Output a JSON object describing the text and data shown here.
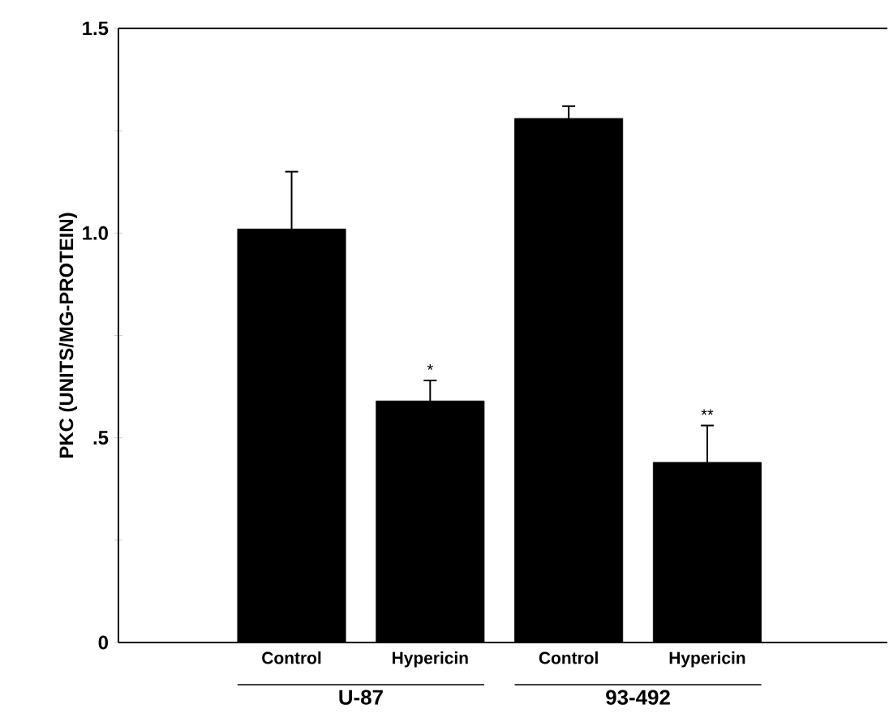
{
  "chart_data": {
    "type": "bar",
    "ylabel": "PKC (UNITS/MG-PROTEIN)",
    "categories": [
      "Control",
      "Hypericin",
      "Control",
      "Hypericin"
    ],
    "values": [
      1.01,
      0.59,
      1.28,
      0.44
    ],
    "errors": [
      0.14,
      0.05,
      0.03,
      0.09
    ],
    "value_labels": [
      null,
      "*",
      null,
      "**"
    ],
    "color": "#000000",
    "ylim": [
      0,
      1.5
    ],
    "yticks": [
      0,
      {
        "value": 0.25,
        "label": null
      },
      {
        "value": 0.5,
        "label": ".5"
      },
      {
        "value": 0.75,
        "label": null
      },
      {
        "value": 1,
        "label": "1.0"
      },
      {
        "value": 1.25,
        "label": null
      },
      1.5
    ],
    "annotations": [
      "U-87",
      "93-492"
    ]
  }
}
